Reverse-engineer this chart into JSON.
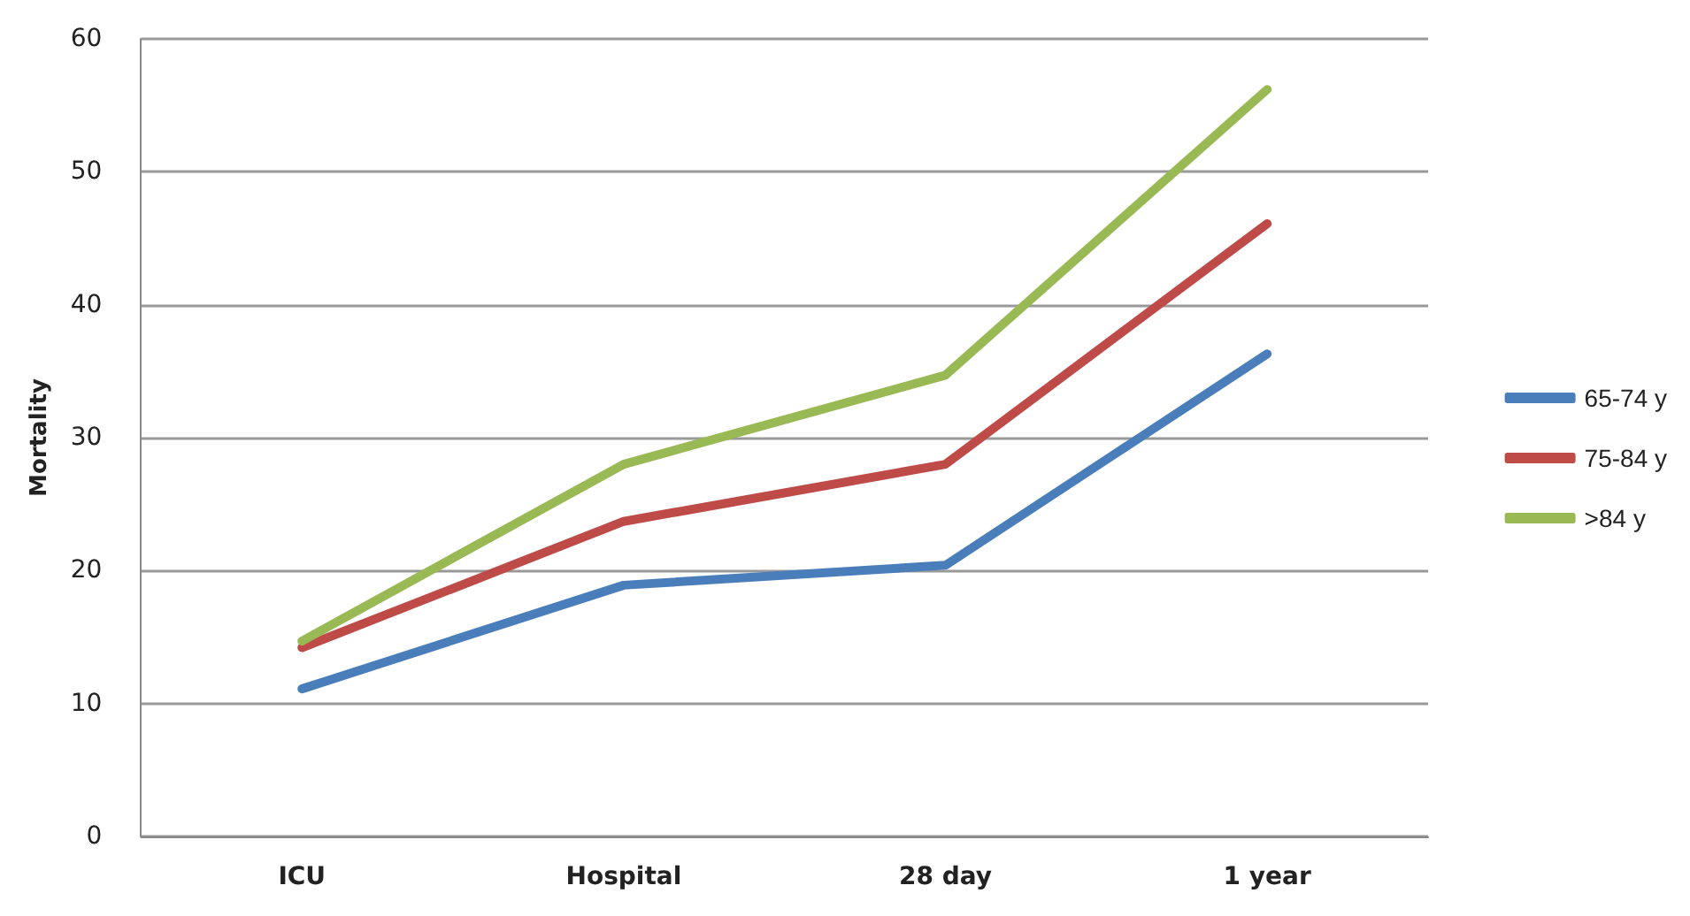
{
  "chart_data": {
    "type": "line",
    "ylabel": "Mortality",
    "categories": [
      "ICU",
      "Hospital",
      "28 day",
      "1 year"
    ],
    "series": [
      {
        "name": "65-74 y",
        "color": "#4a7ebb",
        "values": [
          11.1,
          18.9,
          20.4,
          36.3
        ]
      },
      {
        "name": "75-84 y",
        "color": "#be4b48",
        "values": [
          14.2,
          23.7,
          28.0,
          46.1
        ]
      },
      {
        "name": ">84 y",
        "color": "#98b954",
        "values": [
          14.7,
          28.0,
          34.7,
          56.2
        ]
      }
    ],
    "ylim": [
      0,
      60
    ],
    "yticks": [
      0,
      10,
      20,
      30,
      40,
      50,
      60
    ],
    "grid": "y",
    "legend": "right",
    "marker": "none",
    "line_style": "solid"
  }
}
